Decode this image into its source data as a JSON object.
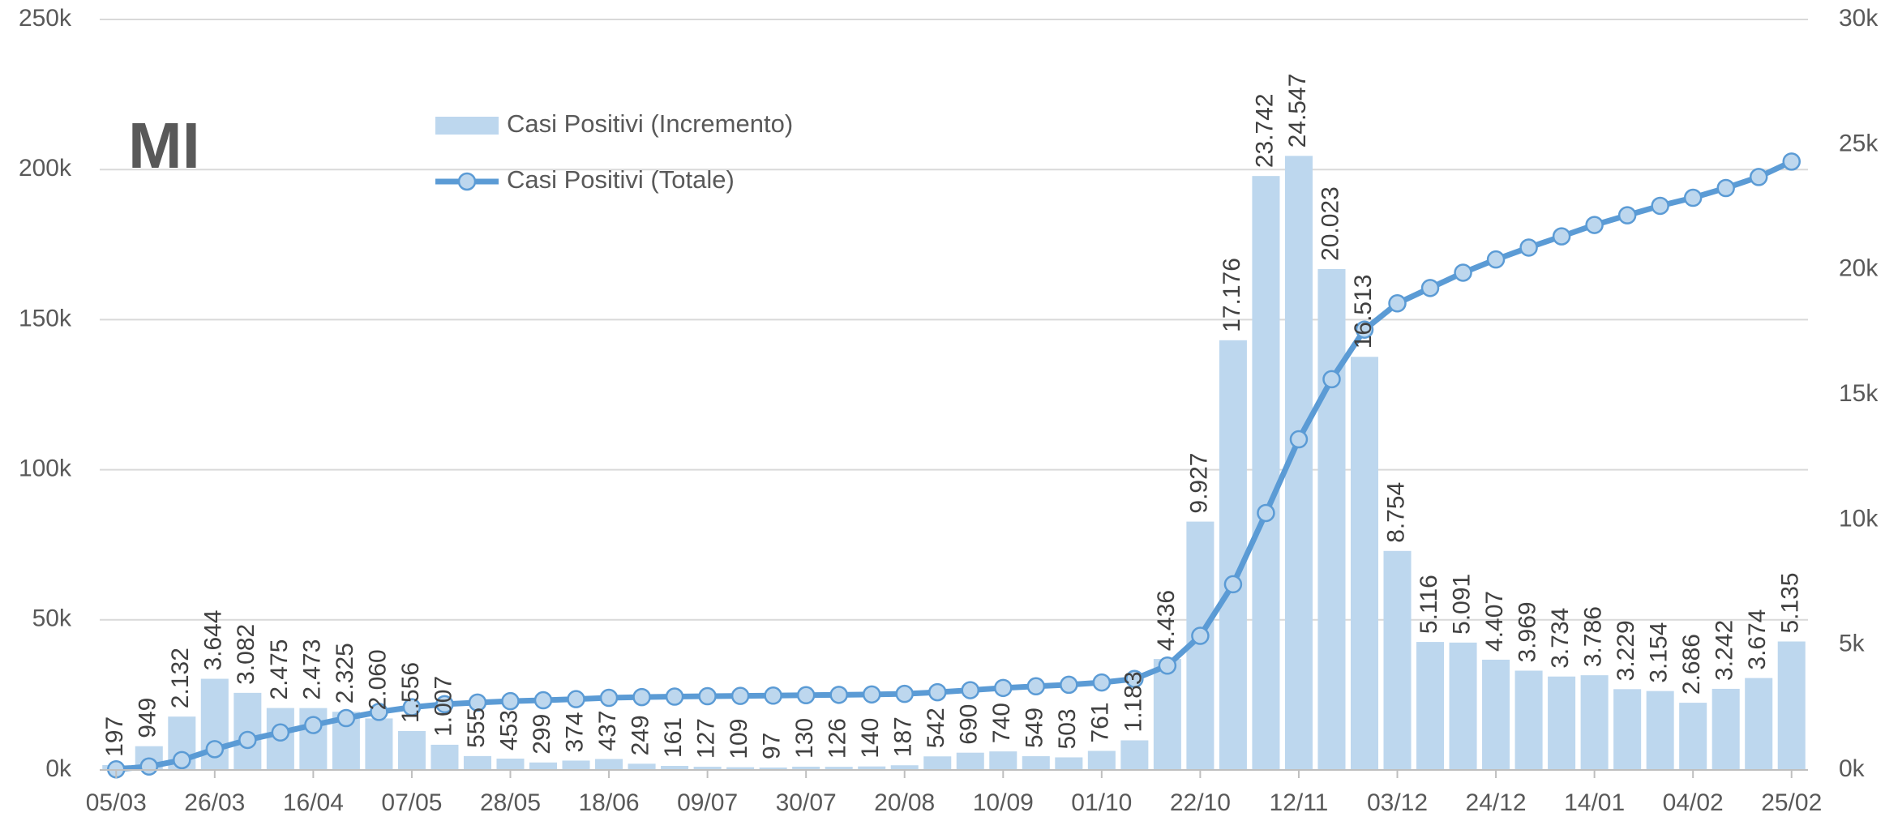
{
  "chart_data": {
    "type": "bar-line",
    "title": "MI",
    "categories": [
      "05/03",
      null,
      null,
      "26/03",
      null,
      null,
      "16/04",
      null,
      null,
      "07/05",
      null,
      null,
      "28/05",
      null,
      null,
      "18/06",
      null,
      null,
      "09/07",
      null,
      null,
      "30/07",
      null,
      null,
      "20/08",
      null,
      null,
      "10/09",
      null,
      null,
      "01/10",
      null,
      null,
      "22/10",
      null,
      null,
      "12/11",
      null,
      null,
      "03/12",
      null,
      null,
      "24/12",
      null,
      null,
      "14/01",
      null,
      null,
      "04/02",
      null,
      null,
      "25/02"
    ],
    "series": [
      {
        "name": "Casi Positivi (Incremento)",
        "type": "bar",
        "axis": "y2",
        "color": "#bdd7ee",
        "values": [
          197,
          949,
          2132,
          3644,
          3082,
          2475,
          2473,
          2325,
          2060,
          1556,
          1007,
          555,
          453,
          299,
          374,
          437,
          249,
          161,
          127,
          109,
          97,
          130,
          126,
          140,
          187,
          542,
          690,
          740,
          549,
          503,
          761,
          1183,
          4436,
          9927,
          17176,
          23742,
          24547,
          20023,
          16513,
          8754,
          5116,
          5091,
          4407,
          3969,
          3734,
          3786,
          3229,
          3154,
          2686,
          3242,
          3674,
          5135
        ],
        "value_labels": [
          "197",
          "949",
          "2.132",
          "3.644",
          "3.082",
          "2.475",
          "2.473",
          "2.325",
          "2.060",
          "1.556",
          "1.007",
          "555",
          "453",
          "299",
          "374",
          "437",
          "249",
          "161",
          "127",
          "109",
          "97",
          "130",
          "126",
          "140",
          "187",
          "542",
          "690",
          "740",
          "549",
          "503",
          "761",
          "1.183",
          "4.436",
          "9.927",
          "17.176",
          "23.742",
          "24.547",
          "20.023",
          "16.513",
          "8.754",
          "5.116",
          "5.091",
          "4.407",
          "3.969",
          "3.734",
          "3.786",
          "3.229",
          "3.154",
          "2.686",
          "3.242",
          "3.674",
          "5.135"
        ]
      },
      {
        "name": "Casi Positivi (Totale)",
        "type": "line",
        "axis": "y",
        "color": "#5b9bd5",
        "values": [
          197,
          1146,
          3278,
          6922,
          10004,
          12479,
          14952,
          17277,
          19337,
          20893,
          21900,
          22455,
          22908,
          23207,
          23581,
          24018,
          24267,
          24428,
          24555,
          24664,
          24761,
          24891,
          25017,
          25157,
          25344,
          25886,
          26576,
          27316,
          27865,
          28368,
          29129,
          30312,
          34748,
          44675,
          61851,
          85593,
          110140,
          130163,
          146676,
          155430,
          160546,
          165637,
          170044,
          174013,
          177747,
          181533,
          184762,
          187916,
          190602,
          193844,
          197518,
          202653
        ]
      }
    ],
    "ylim": [
      0,
      250000
    ],
    "yticks": [
      {
        "value": 0,
        "label": "0k"
      },
      {
        "value": 50000,
        "label": "50k"
      },
      {
        "value": 100000,
        "label": "100k"
      },
      {
        "value": 150000,
        "label": "150k"
      },
      {
        "value": 200000,
        "label": "200k"
      },
      {
        "value": 250000,
        "label": "250k"
      }
    ],
    "y2lim": [
      0,
      30000
    ],
    "y2ticks": [
      {
        "value": 0,
        "label": "0k"
      },
      {
        "value": 5000,
        "label": "5k"
      },
      {
        "value": 10000,
        "label": "10k"
      },
      {
        "value": 15000,
        "label": "15k"
      },
      {
        "value": 20000,
        "label": "20k"
      },
      {
        "value": 25000,
        "label": "25k"
      },
      {
        "value": 30000,
        "label": "30k"
      }
    ],
    "grid": true
  }
}
